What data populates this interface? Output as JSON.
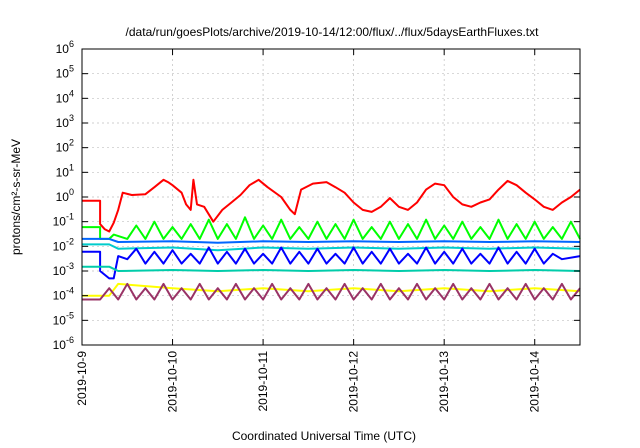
{
  "chart_data": {
    "type": "line",
    "title": "/data/run/goesPlots/archive/2019-10-14/12:00/flux/../flux/5daysEarthFluxes.txt",
    "xlabel": "Coordinated Universal Time (UTC)",
    "ylabel": "protons/cm²-s-sr-MeV",
    "y_scale": "log",
    "ylim": [
      1e-06,
      1000000.0
    ],
    "xlim": [
      "2019-10-09 00:00",
      "2019-10-14 12:00"
    ],
    "x_ticks": [
      "2019-10-9",
      "2019-10-10",
      "2019-10-11",
      "2019-10-12",
      "2019-10-13",
      "2019-10-14"
    ],
    "y_ticks": [
      {
        "base": "10",
        "exp": "-6"
      },
      {
        "base": "10",
        "exp": "-5"
      },
      {
        "base": "10",
        "exp": "-4"
      },
      {
        "base": "10",
        "exp": "-3"
      },
      {
        "base": "10",
        "exp": "-2"
      },
      {
        "base": "10",
        "exp": "-1"
      },
      {
        "base": "10",
        "exp": "0"
      },
      {
        "base": "10",
        "exp": "1"
      },
      {
        "base": "10",
        "exp": "2"
      },
      {
        "base": "10",
        "exp": "3"
      },
      {
        "base": "10",
        "exp": "4"
      },
      {
        "base": "10",
        "exp": "5"
      },
      {
        "base": "10",
        "exp": "6"
      }
    ],
    "grid": true,
    "series": [
      {
        "color": "#ff0000",
        "points": [
          [
            0.0,
            0.7
          ],
          [
            0.2,
            0.7
          ],
          [
            0.2,
            0.08
          ],
          [
            0.25,
            0.05
          ],
          [
            0.3,
            0.04
          ],
          [
            0.35,
            0.09
          ],
          [
            0.4,
            0.3
          ],
          [
            0.45,
            1.5
          ],
          [
            0.55,
            1.2
          ],
          [
            0.7,
            1.3
          ],
          [
            0.8,
            2.5
          ],
          [
            0.9,
            5.0
          ],
          [
            0.95,
            4.0
          ],
          [
            1.0,
            3.0
          ],
          [
            1.1,
            1.5
          ],
          [
            1.15,
            0.5
          ],
          [
            1.2,
            0.3
          ],
          [
            1.23,
            5.0
          ],
          [
            1.27,
            0.5
          ],
          [
            1.35,
            0.4
          ],
          [
            1.45,
            0.1
          ],
          [
            1.55,
            0.3
          ],
          [
            1.65,
            0.6
          ],
          [
            1.75,
            1.2
          ],
          [
            1.85,
            3.0
          ],
          [
            1.95,
            5.0
          ],
          [
            2.05,
            2.5
          ],
          [
            2.2,
            1.0
          ],
          [
            2.3,
            0.3
          ],
          [
            2.35,
            0.2
          ],
          [
            2.42,
            2.0
          ],
          [
            2.55,
            3.5
          ],
          [
            2.7,
            4.0
          ],
          [
            2.8,
            2.5
          ],
          [
            2.9,
            1.5
          ],
          [
            3.0,
            0.6
          ],
          [
            3.1,
            0.3
          ],
          [
            3.2,
            0.25
          ],
          [
            3.3,
            0.4
          ],
          [
            3.4,
            0.9
          ],
          [
            3.5,
            0.4
          ],
          [
            3.6,
            0.3
          ],
          [
            3.7,
            0.6
          ],
          [
            3.8,
            2.0
          ],
          [
            3.9,
            3.5
          ],
          [
            4.0,
            3.0
          ],
          [
            4.1,
            1.0
          ],
          [
            4.2,
            0.5
          ],
          [
            4.3,
            0.4
          ],
          [
            4.4,
            0.6
          ],
          [
            4.5,
            0.8
          ],
          [
            4.6,
            2.0
          ],
          [
            4.7,
            4.5
          ],
          [
            4.8,
            3.0
          ],
          [
            4.9,
            1.5
          ],
          [
            5.0,
            0.8
          ],
          [
            5.1,
            0.4
          ],
          [
            5.2,
            0.3
          ],
          [
            5.3,
            0.6
          ],
          [
            5.4,
            1.0
          ],
          [
            5.5,
            2.0
          ]
        ]
      },
      {
        "color": "#00ff00",
        "points": [
          [
            0.0,
            0.06
          ],
          [
            0.2,
            0.06
          ],
          [
            0.2,
            0.02
          ],
          [
            0.3,
            0.02
          ],
          [
            0.35,
            0.03
          ],
          [
            0.5,
            0.02
          ],
          [
            0.6,
            0.07
          ],
          [
            0.7,
            0.02
          ],
          [
            0.8,
            0.1
          ],
          [
            0.9,
            0.02
          ],
          [
            1.0,
            0.06
          ],
          [
            1.1,
            0.02
          ],
          [
            1.2,
            0.08
          ],
          [
            1.3,
            0.02
          ],
          [
            1.4,
            0.12
          ],
          [
            1.5,
            0.02
          ],
          [
            1.6,
            0.08
          ],
          [
            1.7,
            0.02
          ],
          [
            1.8,
            0.15
          ],
          [
            1.9,
            0.02
          ],
          [
            2.0,
            0.07
          ],
          [
            2.1,
            0.02
          ],
          [
            2.2,
            0.12
          ],
          [
            2.3,
            0.02
          ],
          [
            2.4,
            0.06
          ],
          [
            2.5,
            0.02
          ],
          [
            2.6,
            0.1
          ],
          [
            2.7,
            0.02
          ],
          [
            2.8,
            0.08
          ],
          [
            2.9,
            0.02
          ],
          [
            3.0,
            0.12
          ],
          [
            3.1,
            0.02
          ],
          [
            3.2,
            0.06
          ],
          [
            3.3,
            0.02
          ],
          [
            3.4,
            0.1
          ],
          [
            3.5,
            0.02
          ],
          [
            3.6,
            0.08
          ],
          [
            3.7,
            0.02
          ],
          [
            3.8,
            0.12
          ],
          [
            3.9,
            0.02
          ],
          [
            4.0,
            0.07
          ],
          [
            4.1,
            0.02
          ],
          [
            4.2,
            0.1
          ],
          [
            4.3,
            0.02
          ],
          [
            4.4,
            0.06
          ],
          [
            4.5,
            0.02
          ],
          [
            4.6,
            0.12
          ],
          [
            4.7,
            0.02
          ],
          [
            4.8,
            0.08
          ],
          [
            4.9,
            0.02
          ],
          [
            5.0,
            0.1
          ],
          [
            5.1,
            0.02
          ],
          [
            5.2,
            0.06
          ],
          [
            5.3,
            0.02
          ],
          [
            5.4,
            0.1
          ],
          [
            5.5,
            0.02
          ]
        ]
      },
      {
        "color": "#00cccc",
        "points": [
          [
            0.0,
            0.012
          ],
          [
            0.3,
            0.012
          ],
          [
            0.4,
            0.008
          ],
          [
            1.0,
            0.009
          ],
          [
            1.5,
            0.007
          ],
          [
            2.0,
            0.009
          ],
          [
            2.5,
            0.008
          ],
          [
            3.0,
            0.009
          ],
          [
            3.5,
            0.008
          ],
          [
            4.0,
            0.009
          ],
          [
            4.5,
            0.008
          ],
          [
            5.0,
            0.009
          ],
          [
            5.5,
            0.008
          ]
        ]
      },
      {
        "color": "#0066ff",
        "points": [
          [
            0.0,
            0.02
          ],
          [
            0.3,
            0.02
          ],
          [
            0.4,
            0.015
          ],
          [
            1.0,
            0.016
          ],
          [
            1.5,
            0.014
          ],
          [
            2.0,
            0.016
          ],
          [
            2.5,
            0.015
          ],
          [
            3.0,
            0.016
          ],
          [
            3.5,
            0.015
          ],
          [
            4.0,
            0.016
          ],
          [
            4.5,
            0.015
          ],
          [
            5.0,
            0.016
          ],
          [
            5.5,
            0.015
          ]
        ]
      },
      {
        "color": "#0000ff",
        "points": [
          [
            0.0,
            0.006
          ],
          [
            0.2,
            0.006
          ],
          [
            0.2,
            0.001
          ],
          [
            0.3,
            0.0005
          ],
          [
            0.35,
            0.0005
          ],
          [
            0.4,
            0.004
          ],
          [
            0.5,
            0.003
          ],
          [
            0.6,
            0.008
          ],
          [
            0.7,
            0.002
          ],
          [
            0.8,
            0.006
          ],
          [
            0.9,
            0.002
          ],
          [
            1.0,
            0.007
          ],
          [
            1.1,
            0.002
          ],
          [
            1.2,
            0.005
          ],
          [
            1.3,
            0.002
          ],
          [
            1.4,
            0.009
          ],
          [
            1.5,
            0.002
          ],
          [
            1.6,
            0.006
          ],
          [
            1.7,
            0.002
          ],
          [
            1.8,
            0.008
          ],
          [
            1.9,
            0.002
          ],
          [
            2.0,
            0.005
          ],
          [
            2.1,
            0.002
          ],
          [
            2.2,
            0.009
          ],
          [
            2.3,
            0.002
          ],
          [
            2.4,
            0.006
          ],
          [
            2.5,
            0.002
          ],
          [
            2.6,
            0.008
          ],
          [
            2.7,
            0.002
          ],
          [
            2.8,
            0.005
          ],
          [
            2.9,
            0.002
          ],
          [
            3.0,
            0.009
          ],
          [
            3.1,
            0.002
          ],
          [
            3.2,
            0.006
          ],
          [
            3.3,
            0.002
          ],
          [
            3.4,
            0.008
          ],
          [
            3.5,
            0.002
          ],
          [
            3.6,
            0.005
          ],
          [
            3.7,
            0.002
          ],
          [
            3.8,
            0.009
          ],
          [
            3.9,
            0.002
          ],
          [
            4.0,
            0.006
          ],
          [
            4.1,
            0.002
          ],
          [
            4.2,
            0.008
          ],
          [
            4.3,
            0.002
          ],
          [
            4.4,
            0.005
          ],
          [
            4.5,
            0.002
          ],
          [
            4.6,
            0.009
          ],
          [
            4.7,
            0.002
          ],
          [
            4.8,
            0.006
          ],
          [
            4.9,
            0.002
          ],
          [
            5.0,
            0.008
          ],
          [
            5.1,
            0.002
          ],
          [
            5.2,
            0.005
          ],
          [
            5.3,
            0.003
          ],
          [
            5.5,
            0.004
          ]
        ]
      },
      {
        "color": "#00ccaa",
        "points": [
          [
            0.0,
            0.0015
          ],
          [
            0.3,
            0.0015
          ],
          [
            0.4,
            0.001
          ],
          [
            1.0,
            0.0011
          ],
          [
            1.5,
            0.001
          ],
          [
            2.0,
            0.0011
          ],
          [
            2.5,
            0.001
          ],
          [
            3.0,
            0.0011
          ],
          [
            3.5,
            0.001
          ],
          [
            4.0,
            0.0011
          ],
          [
            4.5,
            0.001
          ],
          [
            5.0,
            0.0011
          ],
          [
            5.5,
            0.001
          ]
        ]
      },
      {
        "color": "#ffff00",
        "points": [
          [
            0.0,
            0.0001
          ],
          [
            0.3,
            0.0001
          ],
          [
            0.4,
            0.0003
          ],
          [
            1.0,
            0.0002
          ],
          [
            1.5,
            0.00015
          ],
          [
            2.0,
            0.0002
          ],
          [
            2.5,
            0.00015
          ],
          [
            3.0,
            0.0002
          ],
          [
            3.5,
            0.00015
          ],
          [
            4.0,
            0.0002
          ],
          [
            4.5,
            0.00015
          ],
          [
            5.0,
            0.0002
          ],
          [
            5.5,
            0.00015
          ]
        ]
      },
      {
        "color": "#993366",
        "points": [
          [
            0.0,
            7e-05
          ],
          [
            0.2,
            7e-05
          ],
          [
            0.3,
            0.0002
          ],
          [
            0.4,
            7e-05
          ],
          [
            0.5,
            0.0003
          ],
          [
            0.6,
            7e-05
          ],
          [
            0.7,
            0.0002
          ],
          [
            0.8,
            7e-05
          ],
          [
            0.9,
            0.0003
          ],
          [
            1.0,
            7e-05
          ],
          [
            1.1,
            0.0002
          ],
          [
            1.2,
            7e-05
          ],
          [
            1.3,
            0.0003
          ],
          [
            1.4,
            7e-05
          ],
          [
            1.5,
            0.0002
          ],
          [
            1.6,
            7e-05
          ],
          [
            1.7,
            0.0003
          ],
          [
            1.8,
            7e-05
          ],
          [
            1.9,
            0.0002
          ],
          [
            2.0,
            7e-05
          ],
          [
            2.1,
            0.0003
          ],
          [
            2.2,
            7e-05
          ],
          [
            2.3,
            0.0002
          ],
          [
            2.4,
            7e-05
          ],
          [
            2.5,
            0.0003
          ],
          [
            2.6,
            7e-05
          ],
          [
            2.7,
            0.0002
          ],
          [
            2.8,
            7e-05
          ],
          [
            2.9,
            0.0003
          ],
          [
            3.0,
            7e-05
          ],
          [
            3.1,
            0.0002
          ],
          [
            3.2,
            7e-05
          ],
          [
            3.3,
            0.0003
          ],
          [
            3.4,
            7e-05
          ],
          [
            3.5,
            0.0002
          ],
          [
            3.6,
            7e-05
          ],
          [
            3.7,
            0.0003
          ],
          [
            3.8,
            7e-05
          ],
          [
            3.9,
            0.0002
          ],
          [
            4.0,
            7e-05
          ],
          [
            4.1,
            0.0003
          ],
          [
            4.2,
            7e-05
          ],
          [
            4.3,
            0.0002
          ],
          [
            4.4,
            7e-05
          ],
          [
            4.5,
            0.0003
          ],
          [
            4.6,
            7e-05
          ],
          [
            4.7,
            0.0002
          ],
          [
            4.8,
            7e-05
          ],
          [
            4.9,
            0.0003
          ],
          [
            5.0,
            7e-05
          ],
          [
            5.1,
            0.0002
          ],
          [
            5.2,
            7e-05
          ],
          [
            5.3,
            0.0003
          ],
          [
            5.4,
            7e-05
          ],
          [
            5.5,
            0.0002
          ]
        ]
      }
    ]
  }
}
